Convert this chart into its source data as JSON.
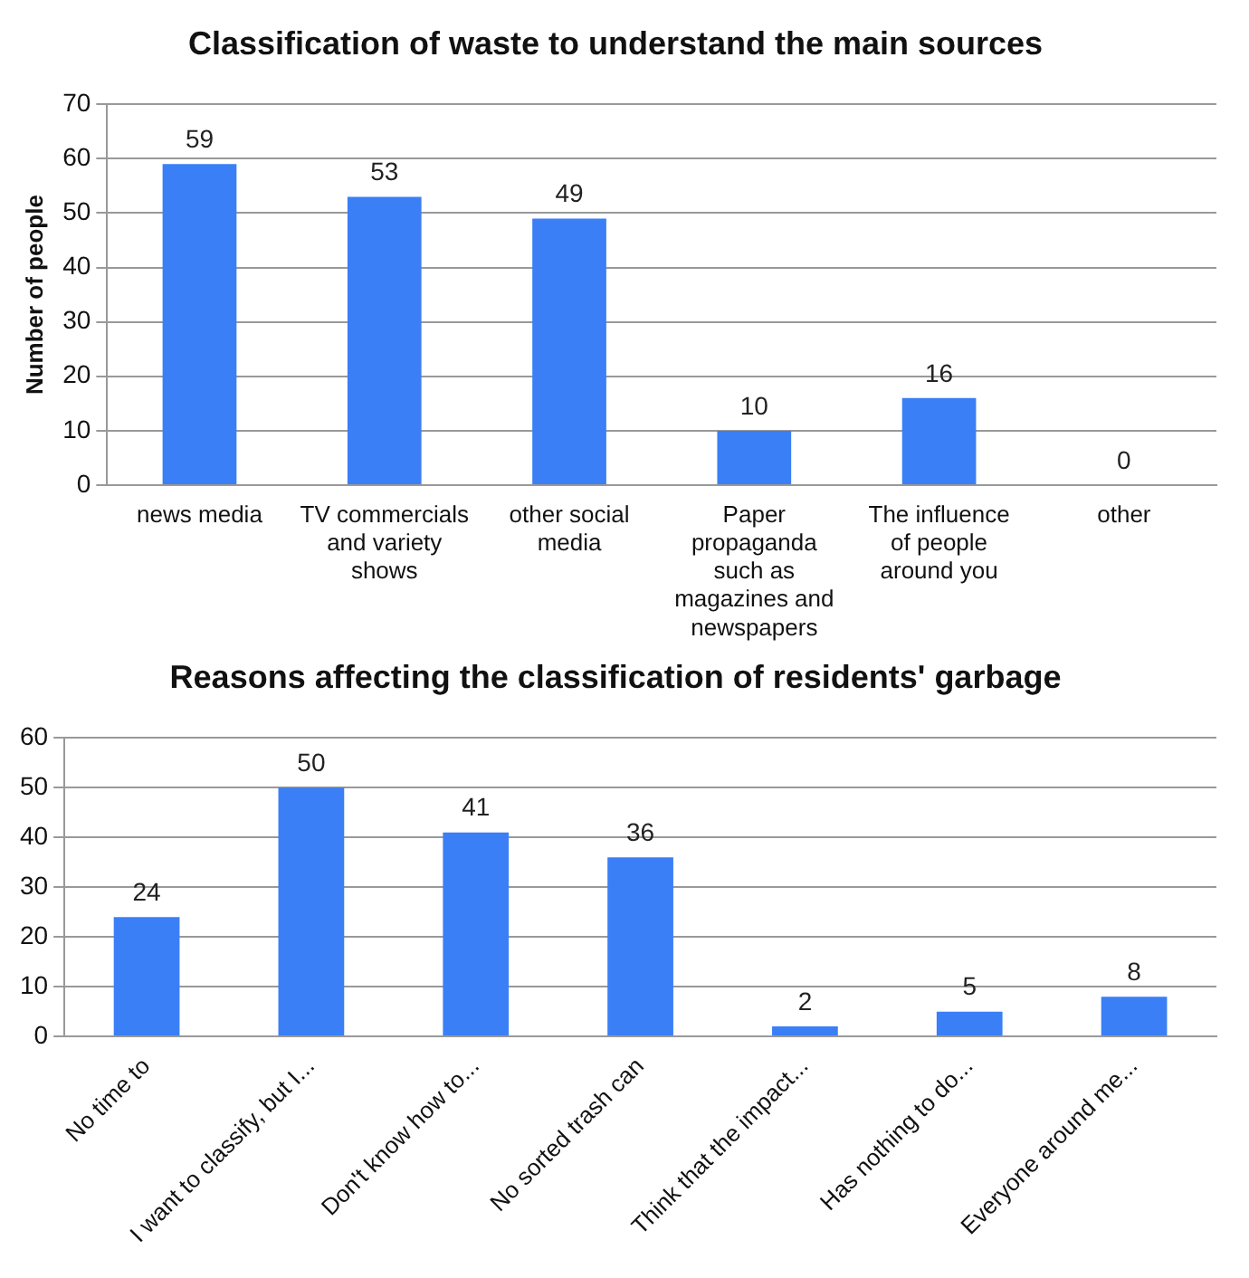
{
  "chart_data": [
    {
      "type": "bar",
      "title": "Classification of waste to understand the main sources",
      "ylabel": "Number of people",
      "categories": [
        "news media",
        "TV commercials and variety shows",
        "other social media",
        "Paper propaganda such as magazines and newspapers",
        "The influence of people around you",
        "other"
      ],
      "values": [
        59,
        53,
        49,
        10,
        16,
        0
      ],
      "color": "#3a7ff6",
      "ylim": [
        0,
        70
      ],
      "yticks": [
        0,
        10,
        20,
        30,
        40,
        50,
        60,
        70
      ],
      "grid": "y",
      "legend": false,
      "data_labels": true
    },
    {
      "type": "bar",
      "title": "Reasons affecting the classification of residents' garbage",
      "categories": [
        "No time to",
        "I want to classify, but I...",
        "Don't know how to...",
        "No sorted trash can",
        "Think that the impact...",
        "Has nothing to do...",
        "Everyone around me..."
      ],
      "values": [
        24,
        50,
        41,
        36,
        2,
        5,
        8
      ],
      "color": "#3a7ff6",
      "ylim": [
        0,
        60
      ],
      "yticks": [
        0,
        10,
        20,
        30,
        40,
        50,
        60
      ],
      "grid": "y",
      "legend": false,
      "data_labels": true
    }
  ]
}
